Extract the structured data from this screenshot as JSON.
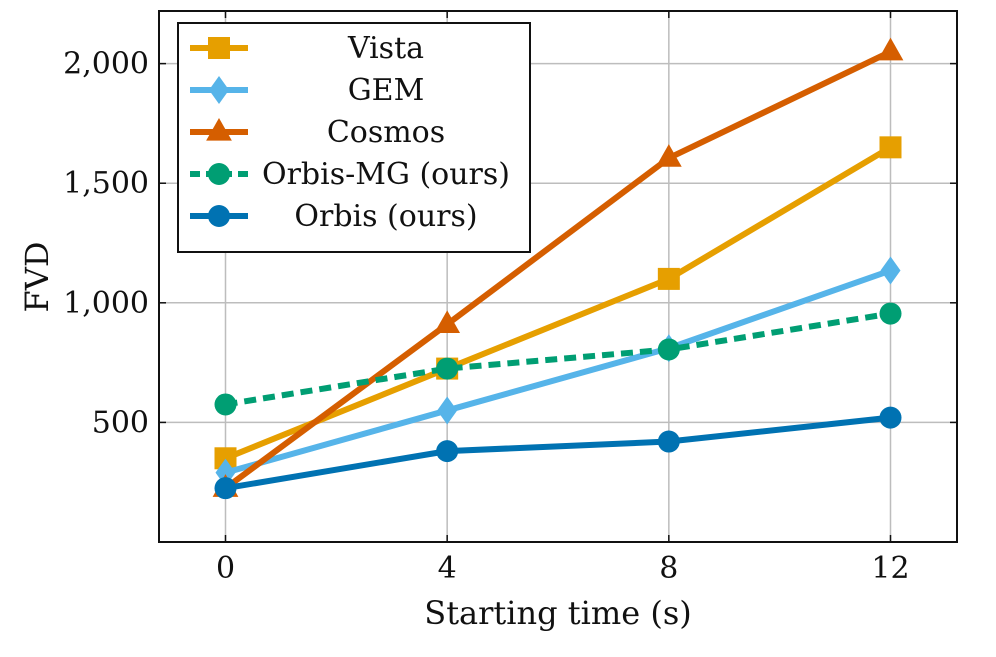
{
  "chart_data": {
    "type": "line",
    "xlabel": "Starting time (s)",
    "ylabel": "FVD",
    "x": [
      0,
      4,
      8,
      12
    ],
    "x_tick_labels": [
      "0",
      "4",
      "8",
      "12"
    ],
    "y_ticks": [
      500,
      1000,
      1500,
      2000
    ],
    "y_tick_labels": [
      "500",
      "1,000",
      "1,500",
      "2,000"
    ],
    "xlim": [
      -1.2,
      13.2
    ],
    "ylim": [
      0,
      2220
    ],
    "grid": true,
    "legend_position": "top-left",
    "series": [
      {
        "name": "Vista",
        "values": [
          350,
          725,
          1100,
          1650
        ],
        "color": "#E69F00",
        "marker": "square",
        "dashed": false
      },
      {
        "name": "GEM",
        "values": [
          290,
          550,
          810,
          1135
        ],
        "color": "#56B4E9",
        "marker": "diamond",
        "dashed": false
      },
      {
        "name": "Cosmos",
        "values": [
          225,
          910,
          1605,
          2050
        ],
        "color": "#D55E00",
        "marker": "triangle",
        "dashed": false
      },
      {
        "name": "Orbis-MG (ours)",
        "values": [
          575,
          725,
          805,
          955
        ],
        "color": "#009E73",
        "marker": "circle",
        "dashed": true
      },
      {
        "name": "Orbis (ours)",
        "values": [
          225,
          380,
          420,
          520
        ],
        "color": "#0072B2",
        "marker": "circle",
        "dashed": false
      }
    ]
  }
}
